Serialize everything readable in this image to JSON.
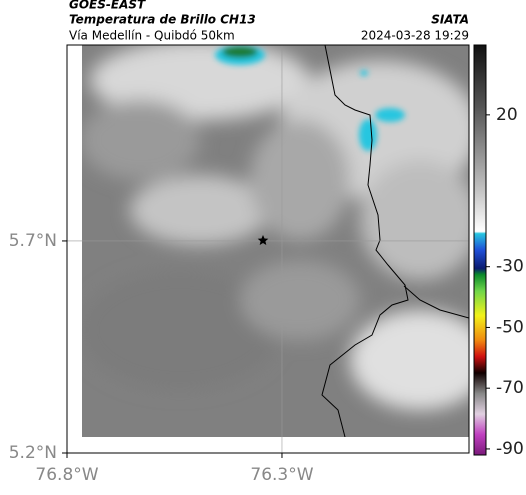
{
  "map": {
    "source": "GOES-EAST",
    "title": "Temperatura de Brillo CH13",
    "subtitle": "Vía Medellín - Quibdó 50km",
    "agency": "SIATA",
    "timestamp": "2024-03-28 19:29",
    "xlim": [
      -76.8,
      -75.865
    ],
    "ylim": [
      5.2,
      6.162
    ],
    "xticks": [
      {
        "value": -76.8,
        "label": "76.8°W"
      },
      {
        "value": -76.3,
        "label": "76.3°W"
      }
    ],
    "yticks": [
      {
        "value": 5.2,
        "label": "5.2°N"
      },
      {
        "value": 5.7,
        "label": "5.7°N"
      }
    ],
    "grid": true,
    "colorbar": {
      "clim": [
        43,
        -92
      ],
      "ticks": [
        20,
        -30,
        -50,
        -70,
        -90
      ]
    }
  }
}
